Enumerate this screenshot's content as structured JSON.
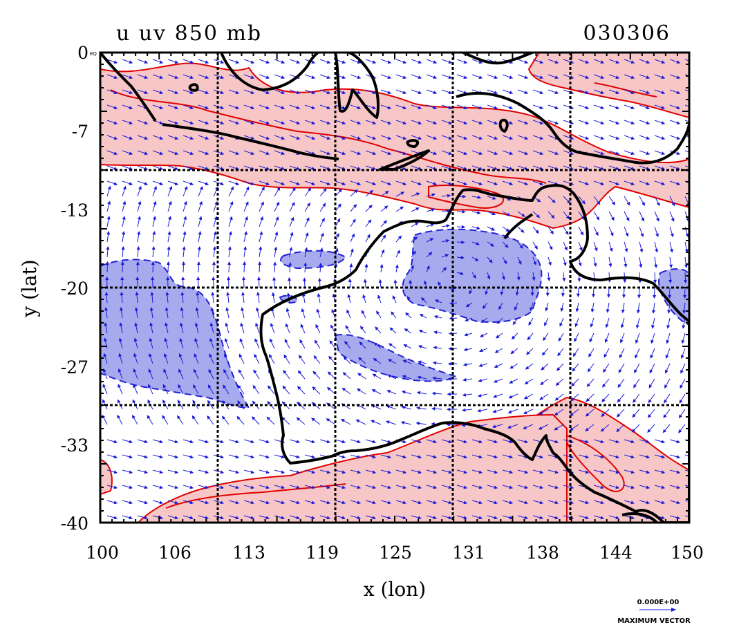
{
  "title_left": "u uv 850 mb",
  "title_right": "030306",
  "x_axis_label": "x (lon)",
  "y_axis_label": "y (lat)",
  "x_ticks": [
    "100",
    "106",
    "113",
    "119",
    "125",
    "131",
    "138",
    "144",
    "150"
  ],
  "y_ticks": [
    "0",
    "-7",
    "-13",
    "-20",
    "-27",
    "-33",
    "-40"
  ],
  "y_top_suffix": "EQ",
  "vector_legend": {
    "magnitude": "0.000E+00",
    "caption": "MAXIMUM VECTOR"
  },
  "colors": {
    "positive_fill": "#f7c6c6",
    "positive_contour": "#e00000",
    "negative_fill": "#a8aaee",
    "negative_contour": "#2020d0",
    "vectors": "#1a1ad8",
    "coastline": "#000000"
  },
  "map": {
    "lon_range": [
      100,
      150
    ],
    "lat_range": [
      -40,
      0
    ],
    "field": "u wind 850 mb",
    "overlay": "uv wind vectors"
  }
}
